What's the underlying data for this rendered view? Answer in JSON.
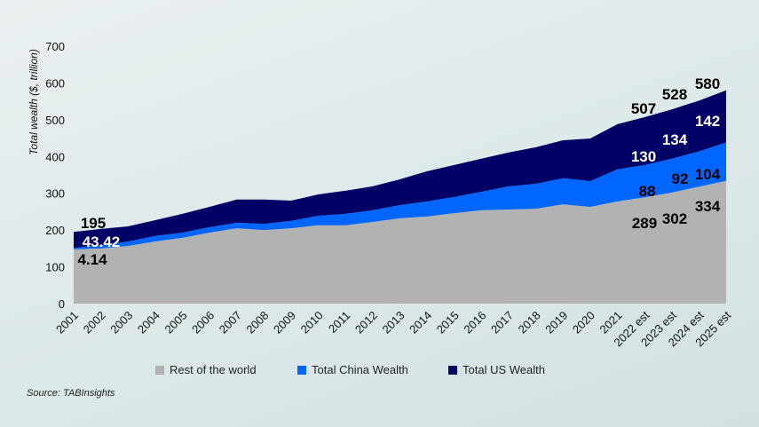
{
  "chart_data": {
    "type": "area",
    "stacked": true,
    "title": "",
    "xlabel": "",
    "ylabel": "Total wealth ($, trillion)",
    "ylim": [
      0,
      700
    ],
    "yticks": [
      0,
      100,
      200,
      300,
      400,
      500,
      600,
      700
    ],
    "grid": false,
    "legend_position": "bottom",
    "categories": [
      "2001",
      "2002",
      "2003",
      "2004",
      "2005",
      "2006",
      "2007",
      "2008",
      "2009",
      "2010",
      "2011",
      "2012",
      "2013",
      "2014",
      "2015",
      "2016",
      "2017",
      "2018",
      "2019",
      "2020",
      "2021",
      "2022 est",
      "2023 est",
      "2024 est",
      "2025 est"
    ],
    "series": [
      {
        "name": "Rest of the world",
        "color": "#b2b2b2",
        "values": [
          147.44,
          150,
          157,
          169,
          179,
          193,
          205,
          200,
          205,
          213,
          213,
          222,
          232,
          237,
          246,
          254,
          256,
          258,
          270,
          263,
          278,
          289,
          302,
          318,
          334
        ]
      },
      {
        "name": "Total China Wealth",
        "color": "#0066ff",
        "values": [
          4.14,
          9,
          12,
          15,
          14,
          15,
          15,
          17,
          20,
          26,
          31,
          32,
          36,
          41,
          44,
          50,
          63,
          68,
          71,
          70,
          87,
          88,
          92,
          96,
          104
        ]
      },
      {
        "name": "Total US Wealth",
        "color": "#000066",
        "values": [
          43.42,
          44,
          41,
          43,
          51,
          55,
          63,
          66,
          55,
          58,
          63,
          65,
          70,
          82,
          87,
          90,
          92,
          99,
          103,
          116,
          123,
          130,
          134,
          138,
          142
        ]
      }
    ],
    "data_labels": [
      {
        "text": "195",
        "color": "#000000"
      },
      {
        "text": "43.42",
        "color": "#ffffff"
      },
      {
        "text": "4.14",
        "color": "#000000"
      },
      {
        "text": "507",
        "color": "#000000"
      },
      {
        "text": "528",
        "color": "#000000"
      },
      {
        "text": "580",
        "color": "#000000"
      },
      {
        "text": "130",
        "color": "#ffffff"
      },
      {
        "text": "134",
        "color": "#ffffff"
      },
      {
        "text": "142",
        "color": "#ffffff"
      },
      {
        "text": "88",
        "color": "#000000"
      },
      {
        "text": "92",
        "color": "#000000"
      },
      {
        "text": "104",
        "color": "#000000"
      },
      {
        "text": "289",
        "color": "#000000"
      },
      {
        "text": "302",
        "color": "#000000"
      },
      {
        "text": "334",
        "color": "#000000"
      }
    ]
  },
  "legend": {
    "items": [
      {
        "label": "Rest of the world",
        "color": "#b2b2b2"
      },
      {
        "label": "Total China Wealth",
        "color": "#0066ff"
      },
      {
        "label": "Total US Wealth",
        "color": "#000066"
      }
    ]
  },
  "source": "Source: TABInsights"
}
